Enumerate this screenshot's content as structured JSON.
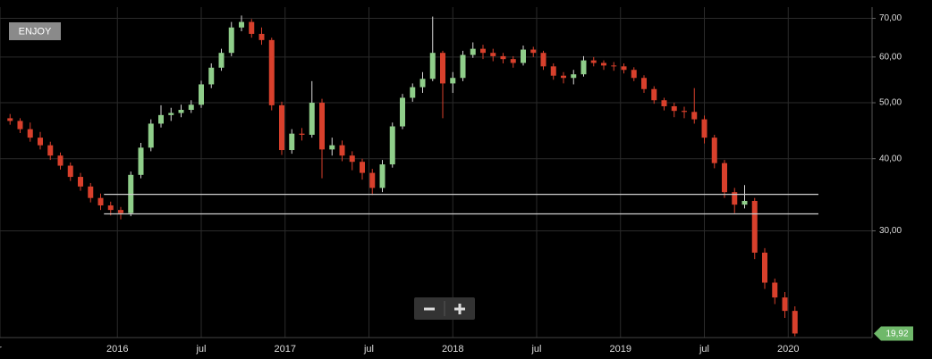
{
  "chart_data": {
    "type": "candlestick",
    "title": "ENJOY",
    "log": true,
    "grid": true,
    "up_color": "#8fce8a",
    "down_color": "#d8402c",
    "ylim": [
      19.6,
      73.2
    ],
    "yticks": [
      {
        "value": 70,
        "label": "70,00"
      },
      {
        "value": 60,
        "label": "60,00"
      },
      {
        "value": 50,
        "label": "50,00"
      },
      {
        "value": 40,
        "label": "40,00"
      },
      {
        "value": 30,
        "label": "30,00"
      }
    ],
    "xlim": [
      2015.3,
      2020.5
    ],
    "xticks": [
      {
        "value": 2015.3,
        "label": "r"
      },
      2016,
      {
        "value": 2016.5,
        "label": "jul"
      },
      2017,
      {
        "value": 2017.5,
        "label": "jul"
      },
      2018,
      {
        "value": 2018.5,
        "label": "jul"
      },
      2019,
      {
        "value": 2019.5,
        "label": "jul"
      },
      2020
    ],
    "levels": [
      {
        "value": 34.7,
        "x": [
          2015.92,
          2020.18
        ]
      },
      {
        "value": 32.1,
        "x": [
          2015.92,
          2020.18
        ]
      }
    ],
    "last_price": {
      "value": 19.92,
      "label": "19,92"
    },
    "x": [
      2015.36,
      2015.42,
      2015.48,
      2015.54,
      2015.6,
      2015.66,
      2015.72,
      2015.78,
      2015.84,
      2015.9,
      2015.96,
      2016.02,
      2016.08,
      2016.14,
      2016.2,
      2016.26,
      2016.32,
      2016.38,
      2016.44,
      2016.5,
      2016.56,
      2016.62,
      2016.68,
      2016.74,
      2016.8,
      2016.86,
      2016.92,
      2016.98,
      2017.04,
      2017.1,
      2017.16,
      2017.22,
      2017.28,
      2017.34,
      2017.4,
      2017.46,
      2017.52,
      2017.58,
      2017.64,
      2017.7,
      2017.76,
      2017.82,
      2017.88,
      2017.94,
      2018.0,
      2018.06,
      2018.12,
      2018.18,
      2018.24,
      2018.3,
      2018.36,
      2018.42,
      2018.48,
      2018.54,
      2018.6,
      2018.66,
      2018.72,
      2018.78,
      2018.84,
      2018.9,
      2018.96,
      2019.02,
      2019.08,
      2019.14,
      2019.2,
      2019.26,
      2019.32,
      2019.38,
      2019.44,
      2019.5,
      2019.56,
      2019.62,
      2019.68,
      2019.74,
      2019.8,
      2019.86,
      2019.92,
      2019.98,
      2020.04
    ],
    "open": [
      47.0,
      46.5,
      45.0,
      43.5,
      42.2,
      40.5,
      38.9,
      37.2,
      35.8,
      34.2,
      33.2,
      32.6,
      32.2,
      37.5,
      41.8,
      46.0,
      47.6,
      48.0,
      48.6,
      49.6,
      53.8,
      57.5,
      61.0,
      67.5,
      69.0,
      65.8,
      64.2,
      49.5,
      41.4,
      44.2,
      44.0,
      50.0,
      41.5,
      42.2,
      40.5,
      39.5,
      37.8,
      35.6,
      39.1,
      45.5,
      51.0,
      53.2,
      55.0,
      61.0,
      54.0,
      55.2,
      60.5,
      62.0,
      61.0,
      60.2,
      59.5,
      58.6,
      61.8,
      61.0,
      57.8,
      55.7,
      55.2,
      56.0,
      59.2,
      58.6,
      58.0,
      57.8,
      57.0,
      55.2,
      52.8,
      50.5,
      49.3,
      48.4,
      48.2,
      46.8,
      43.5,
      39.3,
      35.0,
      33.3,
      33.8,
      27.5,
      24.4,
      23.0,
      21.8
    ],
    "high": [
      47.8,
      47.0,
      46.2,
      44.5,
      42.8,
      41.0,
      39.4,
      37.8,
      36.3,
      34.8,
      33.7,
      33.0,
      38.0,
      42.6,
      46.8,
      49.5,
      49.0,
      49.6,
      50.5,
      54.6,
      58.5,
      62.0,
      69.0,
      70.8,
      69.8,
      67.5,
      64.8,
      50.2,
      45.0,
      45.2,
      54.5,
      50.8,
      43.5,
      43.0,
      41.2,
      40.0,
      38.4,
      39.8,
      46.2,
      51.8,
      54.0,
      56.5,
      70.5,
      61.5,
      56.5,
      61.5,
      63.6,
      63.0,
      62.0,
      61.0,
      60.2,
      62.8,
      62.5,
      61.5,
      58.5,
      56.5,
      57.0,
      60.2,
      60.0,
      59.2,
      58.8,
      58.5,
      57.6,
      55.8,
      53.4,
      51.0,
      50.0,
      49.2,
      53.0,
      47.5,
      44.0,
      39.8,
      35.6,
      36.0,
      34.2,
      28.0,
      24.8,
      23.5,
      22.2
    ],
    "low": [
      45.8,
      44.3,
      42.8,
      41.5,
      39.8,
      38.3,
      36.6,
      35.2,
      33.6,
      32.6,
      31.9,
      31.4,
      31.8,
      37.0,
      41.2,
      45.3,
      46.5,
      47.2,
      48.0,
      49.0,
      53.0,
      56.8,
      60.2,
      66.5,
      64.8,
      63.0,
      48.5,
      40.6,
      40.8,
      43.0,
      43.5,
      37.0,
      40.5,
      39.6,
      38.2,
      36.8,
      34.6,
      35.0,
      38.6,
      45.0,
      50.2,
      52.0,
      54.5,
      47.0,
      52.0,
      54.5,
      59.8,
      59.5,
      59.0,
      58.5,
      57.5,
      58.0,
      60.0,
      57.0,
      54.8,
      54.0,
      53.8,
      55.5,
      57.8,
      57.0,
      56.8,
      56.2,
      54.5,
      52.0,
      49.8,
      48.5,
      47.2,
      47.0,
      46.0,
      42.5,
      38.5,
      34.2,
      32.2,
      32.8,
      26.8,
      23.8,
      22.4,
      21.2,
      19.7
    ],
    "close": [
      46.5,
      45.0,
      43.5,
      42.2,
      40.5,
      38.9,
      37.2,
      35.8,
      34.2,
      33.2,
      32.6,
      32.2,
      37.5,
      41.8,
      46.0,
      47.6,
      48.0,
      48.6,
      49.6,
      53.8,
      57.5,
      61.0,
      67.5,
      69.0,
      65.8,
      64.2,
      49.5,
      41.4,
      44.2,
      44.0,
      50.0,
      41.5,
      42.2,
      40.5,
      39.5,
      37.8,
      35.6,
      39.1,
      45.5,
      51.0,
      53.2,
      55.0,
      61.0,
      54.0,
      55.2,
      60.5,
      62.0,
      61.0,
      60.2,
      59.5,
      58.6,
      61.8,
      61.0,
      57.8,
      55.7,
      55.2,
      56.0,
      59.2,
      58.6,
      58.0,
      57.8,
      57.0,
      55.2,
      52.8,
      50.5,
      49.3,
      48.4,
      48.2,
      46.8,
      43.5,
      39.3,
      35.0,
      33.3,
      33.8,
      27.5,
      24.4,
      23.0,
      21.8,
      19.92
    ]
  }
}
